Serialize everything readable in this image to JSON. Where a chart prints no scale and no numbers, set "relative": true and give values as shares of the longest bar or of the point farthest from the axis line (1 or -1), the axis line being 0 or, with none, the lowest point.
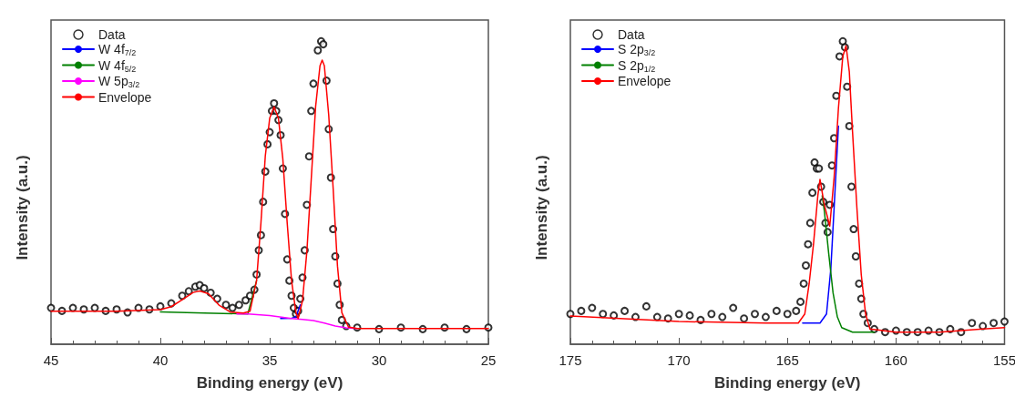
{
  "chart_data": [
    {
      "type": "line",
      "relative": true,
      "xlabel": "Binding energy (eV)",
      "ylabel": "Intensity (a.u.)",
      "xlim": [
        45,
        25
      ],
      "xticks": [
        45,
        40,
        35,
        30,
        25
      ],
      "grid": false,
      "legend": "top left",
      "series": [
        {
          "name": "Data",
          "type": "scatter",
          "marker": "circle",
          "color": "#000000",
          "x": [
            45,
            44.5,
            44,
            43.5,
            43,
            42.5,
            42,
            41.5,
            41,
            40.5,
            40,
            39.5,
            39,
            38.7,
            38.4,
            38.2,
            38,
            37.7,
            37.4,
            37,
            36.7,
            36.4,
            36.1,
            35.9,
            35.7,
            35.6,
            35.5,
            35.4,
            35.3,
            35.2,
            35.1,
            35.0,
            34.9,
            34.8,
            34.7,
            34.6,
            34.5,
            34.4,
            34.3,
            34.2,
            34.1,
            34.0,
            33.9,
            33.8,
            33.7,
            33.6,
            33.5,
            33.4,
            33.3,
            33.2,
            33.1,
            33.0,
            32.8,
            32.65,
            32.55,
            32.4,
            32.3,
            32.2,
            32.1,
            32.0,
            31.9,
            31.8,
            31.7,
            31.5,
            31,
            30,
            29,
            28,
            27,
            26,
            25
          ],
          "values": [
            0.12,
            0.11,
            0.12,
            0.115,
            0.12,
            0.11,
            0.115,
            0.105,
            0.12,
            0.115,
            0.125,
            0.135,
            0.16,
            0.175,
            0.19,
            0.195,
            0.185,
            0.17,
            0.15,
            0.13,
            0.12,
            0.13,
            0.145,
            0.16,
            0.18,
            0.23,
            0.31,
            0.36,
            0.47,
            0.57,
            0.66,
            0.7,
            0.77,
            0.795,
            0.77,
            0.74,
            0.69,
            0.58,
            0.43,
            0.28,
            0.21,
            0.16,
            0.12,
            0.1,
            0.11,
            0.15,
            0.22,
            0.31,
            0.46,
            0.62,
            0.77,
            0.86,
            0.97,
            1,
            0.99,
            0.87,
            0.71,
            0.55,
            0.38,
            0.29,
            0.2,
            0.13,
            0.08,
            0.06,
            0.055,
            0.05,
            0.055,
            0.05,
            0.055,
            0.05,
            0.055
          ]
        },
        {
          "name": "W 4f$_{7/2}$",
          "type": "line",
          "color": "#0000ff",
          "x": [
            34.5,
            34,
            33.8,
            33.6
          ],
          "values": [
            0.085,
            0.086,
            0.09,
            0.13
          ]
        },
        {
          "name": "W 4f$_{5/2}$",
          "type": "line",
          "color": "#008000",
          "x": [
            40,
            38,
            36,
            35.6
          ],
          "values": [
            0.107,
            0.103,
            0.1,
            0.21
          ]
        },
        {
          "name": "W 5p$_{3/2}$",
          "type": "line",
          "color": "#ff00ff",
          "x": [
            36.5,
            36,
            35,
            34,
            33.5,
            33,
            32.5,
            32,
            31.5,
            31
          ],
          "values": [
            0.1,
            0.1,
            0.095,
            0.085,
            0.082,
            0.078,
            0.07,
            0.06,
            0.054,
            0.052
          ]
        },
        {
          "name": "Envelope",
          "type": "line",
          "color": "#ff0000",
          "x": [
            45,
            42,
            40,
            39.5,
            39,
            38.5,
            38.2,
            37.8,
            37.3,
            36.8,
            36.2,
            35.9,
            35.6,
            35.4,
            35.2,
            35,
            34.8,
            34.6,
            34.4,
            34.2,
            34.0,
            33.8,
            33.7,
            33.5,
            33.3,
            33.1,
            32.9,
            32.7,
            32.6,
            32.5,
            32.3,
            32.1,
            31.9,
            31.7,
            31.4,
            31,
            25
          ],
          "values": [
            0.109,
            0.109,
            0.114,
            0.124,
            0.147,
            0.171,
            0.176,
            0.167,
            0.128,
            0.106,
            0.103,
            0.109,
            0.21,
            0.401,
            0.622,
            0.746,
            0.784,
            0.746,
            0.612,
            0.401,
            0.21,
            0.104,
            0.085,
            0.143,
            0.306,
            0.545,
            0.784,
            0.919,
            0.938,
            0.919,
            0.756,
            0.516,
            0.258,
            0.104,
            0.057,
            0.052,
            0.052
          ]
        }
      ]
    },
    {
      "type": "line",
      "relative": true,
      "xlabel": "Binding energy (eV)",
      "ylabel": "Intensity (a.u.)",
      "xlim": [
        175,
        155
      ],
      "xticks": [
        175,
        170,
        165,
        160,
        155
      ],
      "grid": false,
      "legend": "top left",
      "series": [
        {
          "name": "Data",
          "type": "scatter",
          "marker": "circle",
          "color": "#000000",
          "x": [
            175,
            174.5,
            174,
            173.5,
            173,
            172.5,
            172,
            171.5,
            171,
            170.5,
            170,
            169.5,
            169,
            168.5,
            168,
            167.5,
            167,
            166.5,
            166,
            165.5,
            165,
            164.6,
            164.4,
            164.25,
            164.15,
            164.05,
            163.95,
            163.85,
            163.75,
            163.65,
            163.55,
            163.45,
            163.35,
            163.25,
            163.15,
            163.05,
            162.95,
            162.85,
            162.75,
            162.6,
            162.45,
            162.35,
            162.25,
            162.15,
            162.05,
            161.95,
            161.85,
            161.7,
            161.6,
            161.5,
            161.3,
            161,
            160.5,
            160,
            159.5,
            159,
            158.5,
            158,
            157.5,
            157,
            156.5,
            156,
            155.5,
            155
          ],
          "values": [
            0.1,
            0.11,
            0.12,
            0.1,
            0.095,
            0.11,
            0.09,
            0.125,
            0.09,
            0.085,
            0.1,
            0.095,
            0.08,
            0.1,
            0.09,
            0.12,
            0.085,
            0.1,
            0.09,
            0.11,
            0.1,
            0.11,
            0.14,
            0.2,
            0.26,
            0.33,
            0.4,
            0.5,
            0.6,
            0.58,
            0.58,
            0.52,
            0.47,
            0.4,
            0.37,
            0.46,
            0.59,
            0.68,
            0.82,
            0.95,
            1,
            0.98,
            0.85,
            0.72,
            0.52,
            0.38,
            0.29,
            0.2,
            0.15,
            0.1,
            0.07,
            0.05,
            0.04,
            0.045,
            0.04,
            0.04,
            0.045,
            0.04,
            0.05,
            0.04,
            0.07,
            0.06,
            0.07,
            0.075
          ]
        },
        {
          "name": "S 2p$_{3/2}$",
          "type": "line",
          "color": "#0000ff",
          "x": [
            164.3,
            163.5,
            163.2,
            163.0,
            162.85,
            162.65
          ],
          "values": [
            0.07,
            0.07,
            0.1,
            0.25,
            0.45,
            0.72
          ]
        },
        {
          "name": "S 2p$_{1/2}$",
          "type": "line",
          "color": "#008000",
          "x": [
            163.4,
            163.3,
            163.1,
            162.9,
            162.7,
            162.5,
            162,
            161
          ],
          "values": [
            0.49,
            0.44,
            0.3,
            0.17,
            0.09,
            0.055,
            0.04,
            0.04
          ]
        },
        {
          "name": "Envelope",
          "type": "line",
          "color": "#ff0000",
          "x": [
            175,
            170,
            166,
            164.5,
            164.2,
            164.0,
            163.8,
            163.6,
            163.5,
            163.3,
            163.05,
            162.85,
            162.65,
            162.45,
            162.3,
            162.15,
            162.0,
            161.8,
            161.6,
            161.4,
            161.2,
            160,
            158,
            156,
            155
          ],
          "values": [
            0.093,
            0.075,
            0.07,
            0.07,
            0.1,
            0.2,
            0.33,
            0.49,
            0.544,
            0.46,
            0.39,
            0.55,
            0.78,
            0.95,
            0.985,
            0.9,
            0.7,
            0.45,
            0.23,
            0.1,
            0.05,
            0.04,
            0.04,
            0.05,
            0.055
          ]
        }
      ]
    }
  ]
}
